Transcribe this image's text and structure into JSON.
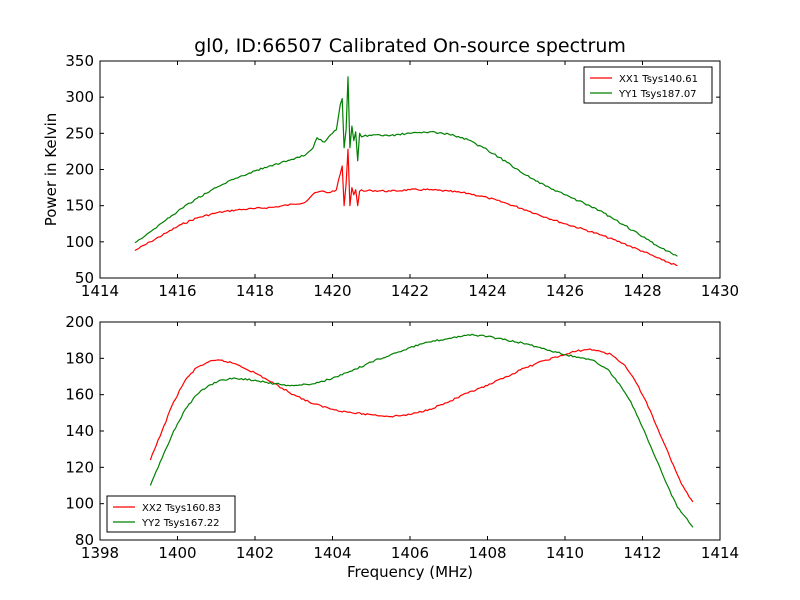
{
  "figure_title": "gl0, ID:66507 Calibrated On-source spectrum",
  "colors": {
    "red": "#ff0000",
    "green": "#008000"
  },
  "chart_data": [
    {
      "type": "line",
      "title": "gl0, ID:66507 Calibrated On-source spectrum",
      "xlabel": "",
      "ylabel": "Power in Kelvin",
      "xlim": [
        1414,
        1430
      ],
      "ylim": [
        50,
        350
      ],
      "xticks": [
        1414,
        1416,
        1418,
        1420,
        1422,
        1424,
        1426,
        1428,
        1430
      ],
      "yticks": [
        50,
        100,
        150,
        200,
        250,
        300,
        350
      ],
      "grid": false,
      "legend_position": "top-right",
      "series": [
        {
          "name": "XX1 Tsys140.61",
          "color": "#ff0000",
          "x": [
            1414.9,
            1415.3,
            1415.7,
            1416.1,
            1416.5,
            1417.0,
            1417.5,
            1418.0,
            1418.5,
            1419.0,
            1419.3,
            1419.5,
            1419.7,
            1419.9,
            1420.1,
            1420.25,
            1420.3,
            1420.35,
            1420.4,
            1420.45,
            1420.5,
            1420.55,
            1420.6,
            1420.65,
            1420.7,
            1420.75,
            1420.8,
            1421.0,
            1421.5,
            1422.0,
            1422.5,
            1423.0,
            1423.5,
            1424.0,
            1424.5,
            1425.0,
            1425.5,
            1426.0,
            1426.5,
            1427.0,
            1427.5,
            1428.0,
            1428.5,
            1428.9
          ],
          "y": [
            88,
            100,
            112,
            124,
            133,
            140,
            144,
            146,
            148,
            152,
            155,
            166,
            170,
            168,
            172,
            205,
            150,
            180,
            228,
            150,
            175,
            165,
            172,
            150,
            170,
            172,
            170,
            171,
            170,
            172,
            172,
            170,
            167,
            161,
            153,
            144,
            134,
            125,
            117,
            108,
            98,
            87,
            75,
            67
          ]
        },
        {
          "name": "YY1 Tsys187.07",
          "color": "#008000",
          "x": [
            1414.9,
            1415.3,
            1415.7,
            1416.1,
            1416.5,
            1417.0,
            1417.5,
            1418.0,
            1418.5,
            1419.0,
            1419.3,
            1419.5,
            1419.6,
            1419.8,
            1419.9,
            1420.1,
            1420.2,
            1420.25,
            1420.3,
            1420.35,
            1420.4,
            1420.45,
            1420.5,
            1420.55,
            1420.6,
            1420.65,
            1420.7,
            1420.75,
            1420.8,
            1421.0,
            1421.5,
            1422.0,
            1422.5,
            1423.0,
            1423.5,
            1424.0,
            1424.5,
            1425.0,
            1425.5,
            1426.0,
            1426.5,
            1427.0,
            1427.5,
            1428.0,
            1428.5,
            1428.9
          ],
          "y": [
            99,
            114,
            130,
            146,
            160,
            175,
            188,
            198,
            207,
            214,
            220,
            230,
            244,
            238,
            245,
            255,
            290,
            298,
            230,
            255,
            328,
            230,
            260,
            240,
            252,
            212,
            250,
            245,
            246,
            247,
            247,
            250,
            252,
            249,
            241,
            227,
            210,
            192,
            177,
            165,
            153,
            140,
            124,
            107,
            91,
            80
          ]
        }
      ]
    },
    {
      "type": "line",
      "title": "",
      "xlabel": "Frequency (MHz)",
      "ylabel": "",
      "xlim": [
        1398,
        1414
      ],
      "ylim": [
        80,
        200
      ],
      "xticks": [
        1398,
        1400,
        1402,
        1404,
        1406,
        1408,
        1410,
        1412,
        1414
      ],
      "yticks": [
        80,
        100,
        120,
        140,
        160,
        180,
        200
      ],
      "grid": false,
      "legend_position": "bottom-left",
      "series": [
        {
          "name": "XX2 Tsys160.83",
          "color": "#ff0000",
          "x": [
            1399.3,
            1399.6,
            1399.9,
            1400.2,
            1400.5,
            1400.8,
            1401.1,
            1401.5,
            1402.0,
            1402.5,
            1403.0,
            1403.5,
            1404.0,
            1404.5,
            1405.0,
            1405.5,
            1406.0,
            1406.5,
            1407.0,
            1407.5,
            1408.0,
            1408.5,
            1409.0,
            1409.5,
            1410.0,
            1410.3,
            1410.6,
            1410.9,
            1411.2,
            1411.5,
            1411.8,
            1412.1,
            1412.4,
            1412.7,
            1413.0,
            1413.3
          ],
          "y": [
            124,
            140,
            156,
            168,
            175,
            178,
            179,
            177,
            172,
            166,
            160,
            155,
            152,
            150,
            149,
            148,
            149,
            152,
            156,
            161,
            165,
            170,
            175,
            179,
            182,
            184,
            185,
            184,
            182,
            177,
            168,
            156,
            141,
            126,
            111,
            101
          ]
        },
        {
          "name": "YY2 Tsys167.22",
          "color": "#008000",
          "x": [
            1399.3,
            1399.6,
            1399.9,
            1400.2,
            1400.5,
            1400.8,
            1401.1,
            1401.5,
            1402.0,
            1402.5,
            1403.0,
            1403.5,
            1404.0,
            1404.5,
            1405.0,
            1405.5,
            1406.0,
            1406.5,
            1407.0,
            1407.5,
            1408.0,
            1408.5,
            1409.0,
            1409.5,
            1410.0,
            1410.5,
            1410.8,
            1411.1,
            1411.4,
            1411.7,
            1412.0,
            1412.3,
            1412.6,
            1412.9,
            1413.3
          ],
          "y": [
            110,
            125,
            140,
            152,
            160,
            165,
            168,
            169,
            168,
            166,
            165,
            166,
            169,
            173,
            178,
            182,
            186,
            189,
            191,
            193,
            192,
            190,
            188,
            185,
            182,
            180,
            178,
            174,
            166,
            156,
            142,
            127,
            112,
            98,
            87
          ]
        }
      ]
    }
  ]
}
